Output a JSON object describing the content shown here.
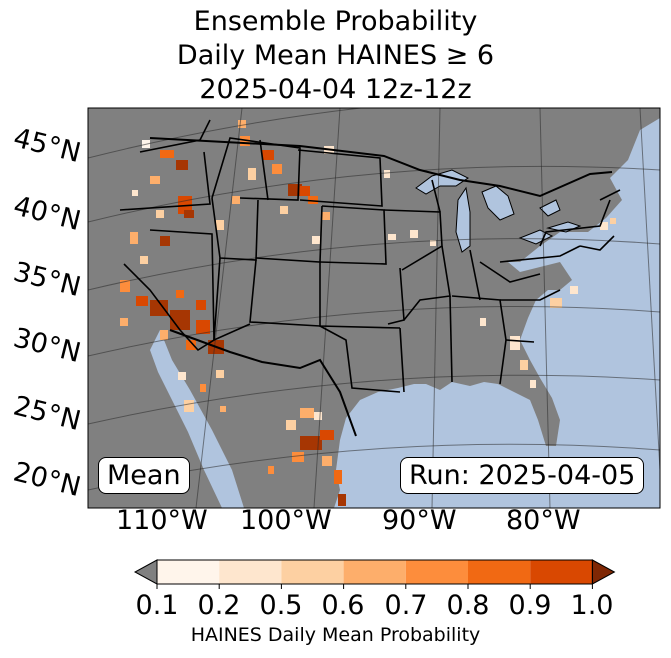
{
  "title": {
    "line1": "Ensemble Probability",
    "line2": "Daily Mean HAINES ≥ 6",
    "line3": "2025-04-04 12z-12z"
  },
  "lat_labels": [
    "45°N",
    "40°N",
    "35°N",
    "30°N",
    "25°N",
    "20°N"
  ],
  "lon_labels": [
    "110°W",
    "100°W",
    "90°W",
    "80°W"
  ],
  "mean_label": "Mean",
  "run_label": "Run: 2025-04-05",
  "colorbar": {
    "ticks": [
      "0.1",
      "0.2",
      "0.5",
      "0.6",
      "0.7",
      "0.8",
      "0.9",
      "1.0"
    ],
    "colors": [
      "#fff5eb",
      "#fee6ce",
      "#fdd0a2",
      "#fdae6b",
      "#fd8d3c",
      "#f16913",
      "#d94801",
      "#a63603"
    ],
    "under_color": "#808080",
    "over_color": "#7f2704",
    "label": "HAINES Daily Mean Probability"
  },
  "colors": {
    "ocean": "#b0c4de",
    "land": "#808080",
    "lakes": "#b0c4de",
    "border": "#000000"
  }
}
